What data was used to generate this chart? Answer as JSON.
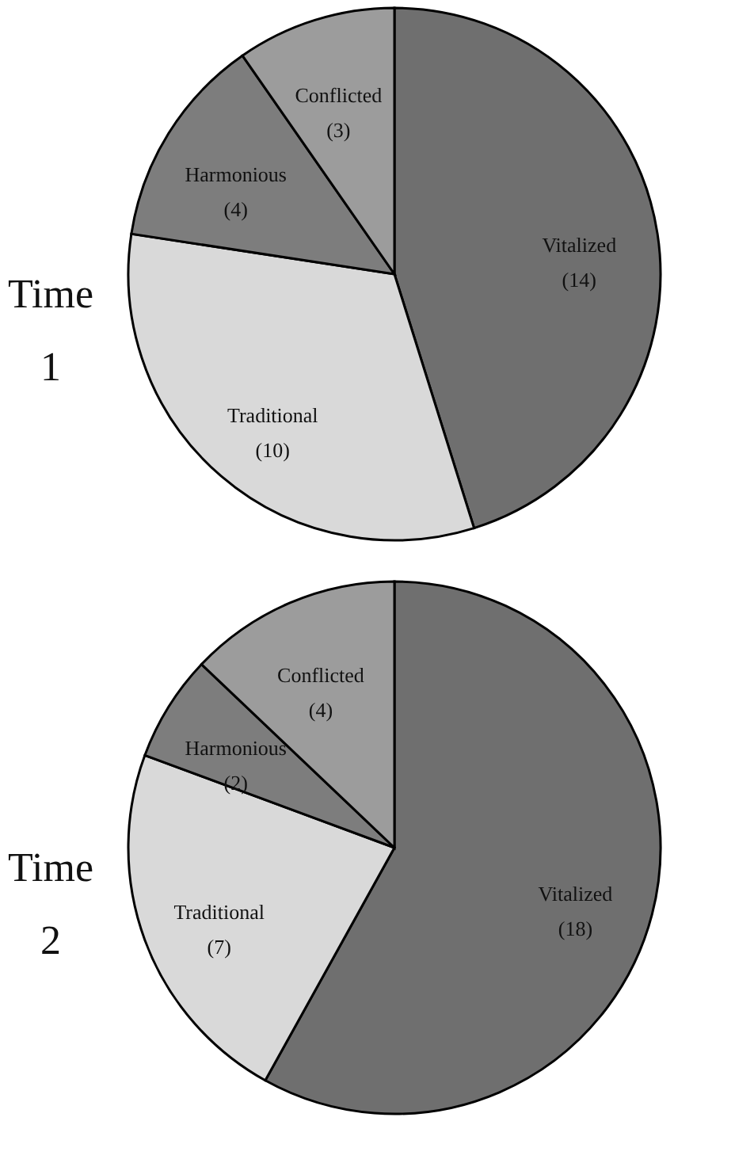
{
  "chart_data": [
    {
      "type": "pie",
      "title": "Time 1",
      "categories": [
        "Vitalized",
        "Traditional",
        "Harmonious",
        "Conflicted"
      ],
      "values": [
        14,
        10,
        4,
        3
      ],
      "value_labels": [
        "(14)",
        "(10)",
        "(4)",
        "(3)"
      ],
      "colors": [
        "#6f6f6f",
        "#d9d9d9",
        "#7d7d7d",
        "#9c9c9c"
      ],
      "legend": false
    },
    {
      "type": "pie",
      "title": "Time 2",
      "categories": [
        "Vitalized",
        "Traditional",
        "Harmonious",
        "Conflicted"
      ],
      "values": [
        18,
        7,
        2,
        4
      ],
      "value_labels": [
        "(18)",
        "(7)",
        "(2)",
        "(4)"
      ],
      "colors": [
        "#6f6f6f",
        "#d9d9d9",
        "#7d7d7d",
        "#9c9c9c"
      ],
      "legend": false
    }
  ]
}
